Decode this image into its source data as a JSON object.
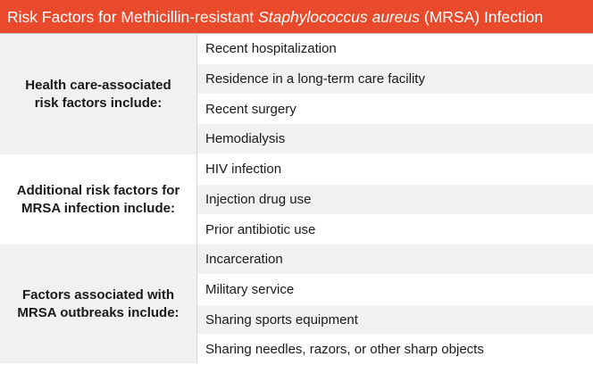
{
  "title": {
    "prefix": "Risk Factors for Methicillin-resistant ",
    "italic": "Staphylococcus aureus",
    "suffix": " (MRSA) Infection"
  },
  "groups": [
    {
      "label": "Health care-associated\nrisk factors include:",
      "items": [
        "Recent hospitalization",
        "Residence in a long-term care facility",
        "Recent surgery",
        "Hemodialysis"
      ]
    },
    {
      "label": "Additional risk factors for\nMRSA infection include:",
      "items": [
        "HIV infection",
        "Injection drug use",
        "Prior antibiotic use"
      ]
    },
    {
      "label": "Factors associated with\nMRSA outbreaks include:",
      "items": [
        "Incarceration",
        "Military service",
        "Sharing sports equipment",
        "Sharing needles, razors, or other sharp objects"
      ]
    }
  ],
  "colors": {
    "title_background": "#e84a2b",
    "title_text": "#ffffff",
    "shaded_row": "#f1f1f1",
    "group1_label_background": "#f1f1f1",
    "group2_label_background": "#ffffff",
    "group3_label_background": "#f1f1f1"
  }
}
